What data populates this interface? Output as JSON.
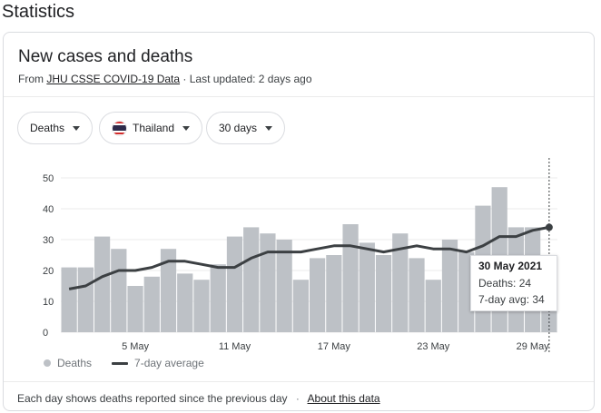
{
  "page_title": "Statistics",
  "card": {
    "title": "New cases and deaths",
    "source_prefix": "From",
    "source_link": "JHU CSSE COVID-19 Data",
    "updated": "· Last updated: 2 days ago"
  },
  "filters": {
    "metric": "Deaths",
    "country": "Thailand",
    "range": "30 days"
  },
  "colors": {
    "bar": "#bdc1c6",
    "line": "#3c4043",
    "grid": "#ebebeb",
    "flag_red": "#d22b2b",
    "flag_white": "#ffffff",
    "flag_blue": "#2d2a4a"
  },
  "chart_data": {
    "type": "bar",
    "x": [
      "1 May",
      "2 May",
      "3 May",
      "4 May",
      "5 May",
      "6 May",
      "7 May",
      "8 May",
      "9 May",
      "10 May",
      "11 May",
      "12 May",
      "13 May",
      "14 May",
      "15 May",
      "16 May",
      "17 May",
      "18 May",
      "19 May",
      "20 May",
      "21 May",
      "22 May",
      "23 May",
      "24 May",
      "25 May",
      "26 May",
      "27 May",
      "28 May",
      "29 May",
      "30 May"
    ],
    "x_tick_labels": [
      "5 May",
      "11 May",
      "17 May",
      "23 May",
      "29 May"
    ],
    "x_tick_dates": [
      "5 May",
      "11 May",
      "17 May",
      "23 May",
      "29 May"
    ],
    "y_ticks": [
      0,
      10,
      20,
      30,
      40,
      50
    ],
    "ylim": [
      0,
      50
    ],
    "series": [
      {
        "name": "Deaths",
        "type": "bar",
        "values": [
          21,
          21,
          31,
          27,
          15,
          18,
          27,
          19,
          17,
          22,
          31,
          34,
          32,
          30,
          17,
          24,
          25,
          35,
          29,
          25,
          32,
          24,
          17,
          30,
          26,
          41,
          47,
          34,
          34,
          24
        ]
      },
      {
        "name": "7-day average",
        "type": "line",
        "values": [
          14,
          15,
          18,
          20,
          20,
          21,
          23,
          23,
          22,
          21,
          21,
          24,
          26,
          26,
          26,
          27,
          28,
          28,
          27,
          26,
          27,
          28,
          27,
          27,
          26,
          28,
          31,
          31,
          33,
          34
        ]
      }
    ],
    "highlight_index": 29,
    "grid": true
  },
  "tooltip": {
    "date": "30 May 2021",
    "deaths": "Deaths: 24",
    "avg": "7-day avg: 34"
  },
  "legend": {
    "bars": "Deaths",
    "line": "7-day average"
  },
  "footer": {
    "note": "Each day shows deaths reported since the previous day",
    "separator": "·",
    "link": "About this data"
  }
}
